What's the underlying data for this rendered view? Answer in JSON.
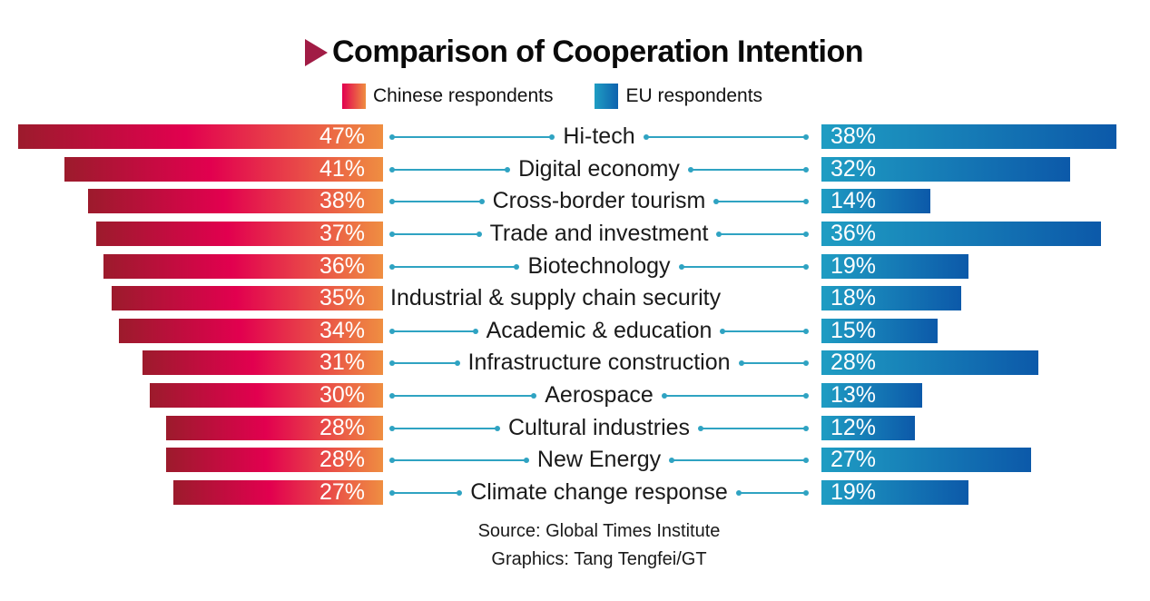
{
  "title": {
    "text": "Comparison of Cooperation Intention",
    "arrow_icon": "right-triangle",
    "arrow_color": "#a11c45"
  },
  "legend": {
    "items": [
      {
        "label": "Chinese respondents",
        "swatch_gradient": [
          "#e2004f",
          "#ef8e41"
        ]
      },
      {
        "label": "EU respondents",
        "swatch_gradient": [
          "#1f9dc3",
          "#0e62ae"
        ]
      }
    ]
  },
  "source": {
    "line1": "Source: Global Times Institute",
    "line2": "Graphics: Tang Tengfei/GT"
  },
  "colors": {
    "chinese_bar_gradient": [
      "#9c1b2c",
      "#e2004f",
      "#ef8e41"
    ],
    "eu_bar_gradient": [
      "#1f9dc3",
      "#0c59a9"
    ],
    "connector": "#2fa3c2",
    "title_text": "#0a0a0a",
    "category_text": "#1a1a1a",
    "value_text": "#ffffff"
  },
  "chart_data": {
    "type": "bar",
    "subtype": "diverging-horizontal",
    "title": "Comparison of Cooperation Intention",
    "value_suffix": "%",
    "categories": [
      "Hi-tech",
      "Digital economy",
      "Cross-border tourism",
      "Trade and investment",
      "Biotechnology",
      "Industrial & supply chain security",
      "Academic & education",
      "Infrastructure construction",
      "Aerospace",
      "Cultural industries",
      "New Energy",
      "Climate change response"
    ],
    "series": [
      {
        "name": "Chinese respondents",
        "side": "left",
        "values": [
          47,
          41,
          38,
          37,
          36,
          35,
          34,
          31,
          30,
          28,
          28,
          27
        ]
      },
      {
        "name": "EU respondents",
        "side": "right",
        "values": [
          38,
          32,
          14,
          36,
          19,
          18,
          15,
          28,
          13,
          12,
          27,
          19
        ]
      }
    ],
    "categories_without_connectors": [
      "Industrial & supply chain security"
    ],
    "axis_range_percent": [
      0,
      50
    ],
    "grid": false,
    "legend_position": "top",
    "value_labels": "inside-bar-ends"
  }
}
